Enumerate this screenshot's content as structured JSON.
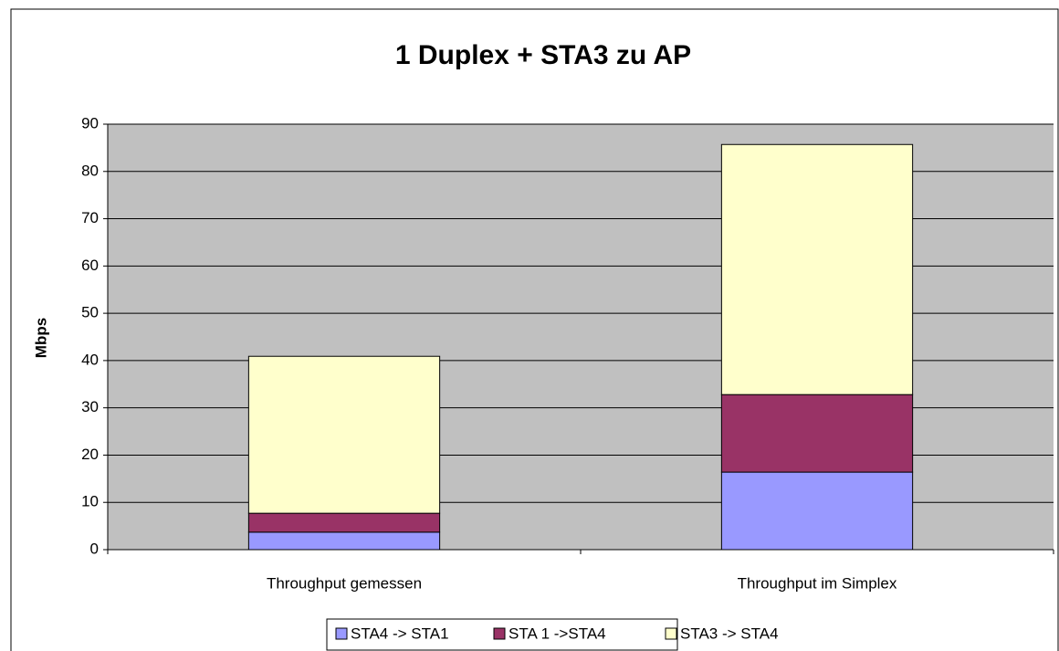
{
  "chart_data": {
    "type": "stacked_bar",
    "title": "1 Duplex + STA3 zu AP",
    "y_label": "Mbps",
    "categories": [
      "Throughput gemessen",
      "Throughput im Simplex"
    ],
    "series": [
      {
        "name": "STA4 -> STA1",
        "color": "#9999ff",
        "values": [
          3.7,
          16.4
        ]
      },
      {
        "name": "STA 1 ->STA4",
        "color": "#993366",
        "values": [
          4.0,
          16.4
        ]
      },
      {
        "name": "STA3 -> STA4",
        "color": "#ffffcc",
        "values": [
          33.2,
          52.9
        ]
      }
    ],
    "ylim": [
      0,
      90
    ],
    "yticks": [
      0,
      10,
      20,
      30,
      40,
      50,
      60,
      70,
      80,
      90
    ],
    "grid": true,
    "legend": "bottom"
  }
}
